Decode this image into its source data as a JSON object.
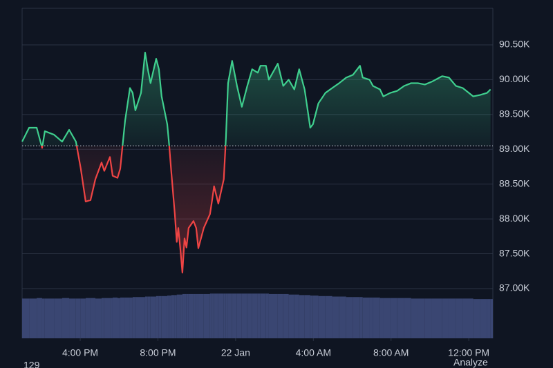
{
  "chart_data": {
    "type": "baseline-line",
    "x": [
      13.01,
      13.37,
      13.76,
      14.04,
      14.18,
      14.65,
      15.07,
      15.43,
      15.78,
      16.03,
      16.28,
      16.53,
      16.78,
      17.1,
      17.24,
      17.53,
      17.67,
      17.92,
      18.06,
      18.31,
      18.56,
      18.7,
      18.84,
      19.13,
      19.34,
      19.48,
      19.62,
      19.91,
      20.05,
      20.19,
      20.48,
      20.58,
      20.69,
      20.87,
      20.97,
      21.05,
      21.15,
      21.26,
      21.37,
      21.47,
      21.58,
      21.83,
      21.97,
      22.08,
      22.36,
      22.68,
      22.79,
      22.89,
      23.11,
      23.39,
      23.5,
      23.61,
      23.82,
      24.07,
      24.32,
      24.6,
      24.85,
      25.14,
      25.28,
      25.56,
      25.71,
      26.17,
      26.45,
      26.73,
      27.02,
      27.27,
      27.55,
      27.84,
      27.98,
      28.26,
      28.62,
      28.97,
      29.33,
      29.69,
      30.04,
      30.4,
      30.54,
      30.89,
      31.07,
      31.43,
      31.6,
      31.96,
      32.32,
      32.67,
      33.03,
      33.38,
      33.74,
      34.09,
      34.63,
      34.98,
      35.34,
      35.69,
      36.23,
      36.58,
      36.94,
      37.12
    ],
    "series": [
      {
        "values": [
          89110,
          89310,
          89310,
          89020,
          89260,
          89210,
          89110,
          89280,
          89110,
          88720,
          88250,
          88270,
          88570,
          88810,
          88690,
          88890,
          88620,
          88590,
          88720,
          89410,
          89880,
          89810,
          89560,
          89810,
          90390,
          90150,
          89950,
          90300,
          90150,
          89760,
          89360,
          89060,
          88670,
          88070,
          87670,
          87870,
          87580,
          87230,
          87720,
          87590,
          87870,
          87970,
          87870,
          87580,
          87870,
          88070,
          88270,
          88470,
          88220,
          88570,
          89160,
          89950,
          90270,
          89910,
          89610,
          89910,
          90150,
          90100,
          90200,
          90200,
          90000,
          90230,
          89910,
          90000,
          89860,
          90150,
          89860,
          89310,
          89360,
          89660,
          89810,
          89880,
          89950,
          90030,
          90070,
          90200,
          90030,
          90000,
          89910,
          89860,
          89760,
          89810,
          89840,
          89910,
          89950,
          89950,
          89930,
          89970,
          90050,
          90030,
          89910,
          89880,
          89760,
          89780,
          89810,
          89860
        ]
      }
    ],
    "volume": [
      80,
      80,
      81,
      80,
      80,
      80,
      81,
      80,
      80,
      80,
      81,
      81,
      80,
      81,
      81,
      81,
      82,
      81,
      82,
      82,
      82,
      83,
      83,
      83,
      84,
      84,
      84,
      85,
      85,
      85,
      86,
      86,
      87,
      87,
      88,
      88,
      88,
      89,
      89,
      89,
      89,
      89,
      89,
      89,
      89,
      90,
      90,
      90,
      90,
      90,
      90,
      90,
      90,
      90,
      90,
      90,
      90,
      90,
      90,
      90,
      89,
      89,
      89,
      88,
      88,
      87,
      87,
      86,
      86,
      85,
      85,
      84,
      84,
      83,
      83,
      83,
      82,
      82,
      82,
      81,
      81,
      81,
      81,
      81,
      80,
      80,
      80,
      80,
      80,
      80,
      80,
      80,
      79,
      79,
      79,
      79
    ],
    "volume_ylim": [
      0,
      100
    ],
    "baseline": 89050,
    "up_color": "#3fcf8e",
    "down_color": "#ef4444",
    "volume_color": "#3a4672",
    "xlim": [
      13.01,
      37.24
    ],
    "ylim": [
      86286,
      91025
    ],
    "xticks": [
      {
        "value": 16,
        "label": "4:00 PM"
      },
      {
        "value": 20,
        "label": "8:00 PM"
      },
      {
        "value": 24,
        "label": "22 Jan"
      },
      {
        "value": 28,
        "label": "4:00 AM"
      },
      {
        "value": 32,
        "label": "8:00 AM"
      },
      {
        "value": 36,
        "label": "12:00 PM"
      }
    ],
    "yticks": [
      {
        "value": 87000,
        "label": "87.00K"
      },
      {
        "value": 87500,
        "label": "87.50K"
      },
      {
        "value": 88000,
        "label": "88.00K"
      },
      {
        "value": 88500,
        "label": "88.50K"
      },
      {
        "value": 89000,
        "label": "89.00K"
      },
      {
        "value": 89500,
        "label": "89.50K"
      },
      {
        "value": 90000,
        "label": "90.00K"
      },
      {
        "value": 90500,
        "label": "90.50K"
      }
    ],
    "grid": true,
    "footer_left": "129",
    "footer_right": "Analyze"
  }
}
